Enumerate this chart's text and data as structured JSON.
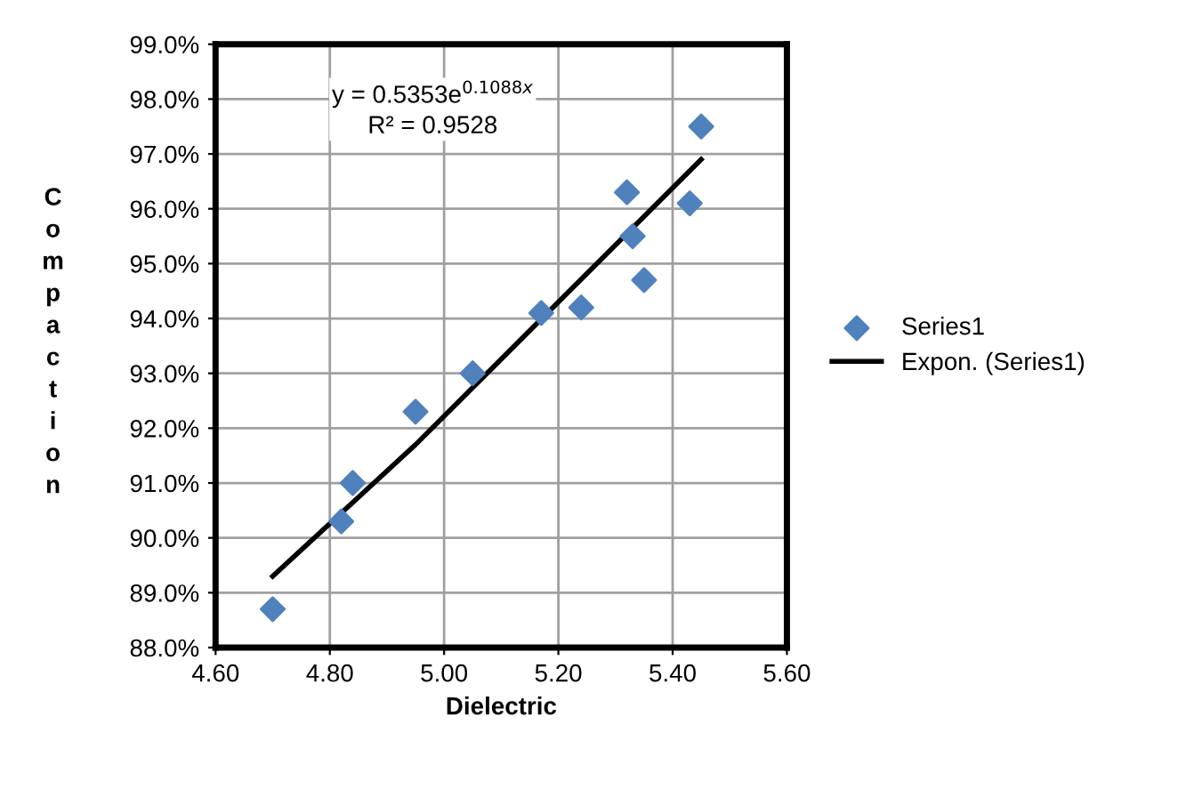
{
  "chart_data": {
    "type": "scatter",
    "xlabel": "Dielectric",
    "ylabel": "Compaction",
    "annotations": [
      "y = 0.5353e$^{0.1088x}$",
      "R² = 0.9528"
    ],
    "series": [
      {
        "name": "Series1",
        "color": "#4f81bd",
        "marker": "diamond",
        "x": [
          4.7,
          4.82,
          4.84,
          4.95,
          5.05,
          5.17,
          5.24,
          5.32,
          5.33,
          5.35,
          5.43,
          5.45
        ],
        "values": [
          88.7,
          90.3,
          91.0,
          92.3,
          93.0,
          94.1,
          94.2,
          96.3,
          95.5,
          94.7,
          96.1,
          97.5
        ]
      },
      {
        "name": "Expon. (Series1)",
        "type": "line",
        "color": "#000000",
        "line_style": "solid",
        "x": [
          4.7,
          4.95,
          5.2,
          5.45
        ],
        "values": [
          89.3,
          91.7,
          94.3,
          96.9
        ]
      }
    ],
    "xlim": [
      4.6,
      5.6
    ],
    "xticks": [
      {
        "value": 4.6,
        "label": "4.60"
      },
      {
        "value": 4.8,
        "label": "4.80"
      },
      {
        "value": 5.0,
        "label": "5.00"
      },
      {
        "value": 5.2,
        "label": "5.20"
      },
      {
        "value": 5.4,
        "label": "5.40"
      },
      {
        "value": 5.6,
        "label": "5.60"
      }
    ],
    "ylim": [
      88,
      99
    ],
    "yticks": [
      {
        "value": 88,
        "label": "88.0%"
      },
      {
        "value": 89,
        "label": "89.0%"
      },
      {
        "value": 90,
        "label": "90.0%"
      },
      {
        "value": 91,
        "label": "91.0%"
      },
      {
        "value": 92,
        "label": "92.0%"
      },
      {
        "value": 93,
        "label": "93.0%"
      },
      {
        "value": 94,
        "label": "94.0%"
      },
      {
        "value": 95,
        "label": "95.0%"
      },
      {
        "value": 96,
        "label": "96.0%"
      },
      {
        "value": 97,
        "label": "97.0%"
      },
      {
        "value": 98,
        "label": "98.0%"
      },
      {
        "value": 99,
        "label": "99.0%"
      }
    ],
    "grid": true,
    "legend": "right"
  }
}
